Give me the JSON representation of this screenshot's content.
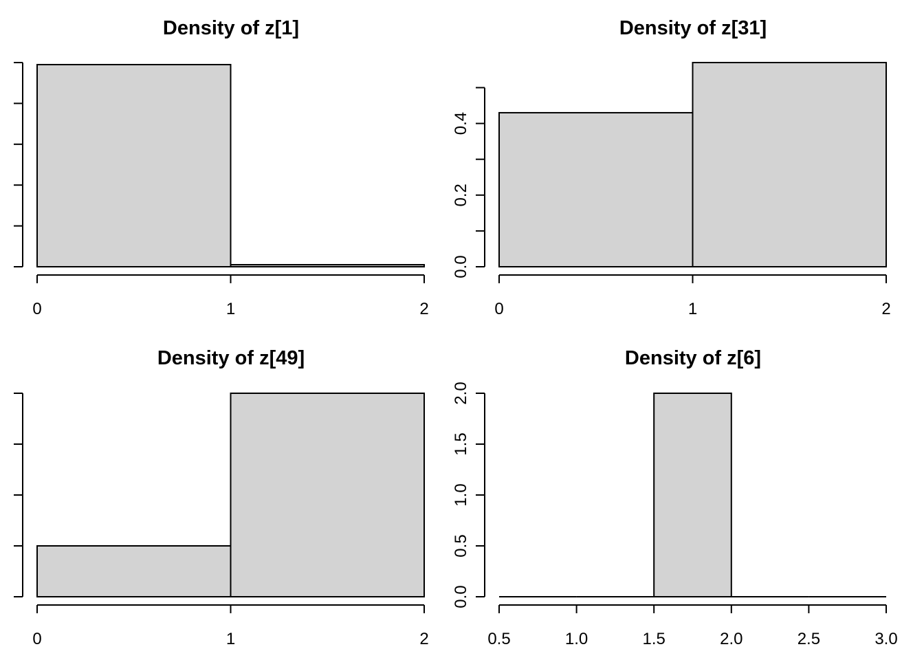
{
  "chart_data": [
    {
      "type": "bar",
      "title": "Density of z[1]",
      "xlabel": "",
      "ylabel": "",
      "bins": [
        [
          0,
          1
        ],
        [
          1,
          2
        ]
      ],
      "values": [
        0.99,
        0.01
      ],
      "x_ticks": [
        0,
        1,
        2
      ],
      "x_tick_labels": [
        "0",
        "1",
        "2"
      ],
      "y_ticks": [
        0,
        0.2,
        0.4,
        0.6,
        0.8,
        1.0
      ],
      "y_tick_labels": [],
      "xlim": [
        0,
        2
      ],
      "ylim": [
        0,
        1.0
      ]
    },
    {
      "type": "bar",
      "title": "Density of z[31]",
      "xlabel": "",
      "ylabel": "",
      "bins": [
        [
          0,
          1
        ],
        [
          1,
          2
        ]
      ],
      "values": [
        0.43,
        0.57
      ],
      "x_ticks": [
        0,
        1,
        2
      ],
      "x_tick_labels": [
        "0",
        "1",
        "2"
      ],
      "y_ticks": [
        0,
        0.1,
        0.2,
        0.3,
        0.4,
        0.5
      ],
      "y_tick_labels": [
        "0.0",
        "",
        "0.2",
        "",
        "0.4",
        ""
      ],
      "xlim": [
        0,
        2
      ],
      "ylim": [
        0,
        0.57
      ]
    },
    {
      "type": "bar",
      "title": "Density of z[49]",
      "xlabel": "",
      "ylabel": "",
      "bins": [
        [
          0,
          1
        ],
        [
          1,
          2
        ]
      ],
      "values": [
        0.5,
        2.0
      ],
      "x_ticks": [
        0,
        1,
        2
      ],
      "x_tick_labels": [
        "0",
        "1",
        "2"
      ],
      "y_ticks": [
        0,
        0.5,
        1.0,
        1.5,
        2.0
      ],
      "y_tick_labels": [],
      "xlim": [
        0,
        2
      ],
      "ylim": [
        0,
        2.0
      ]
    },
    {
      "type": "bar",
      "title": "Density of z[6]",
      "xlabel": "",
      "ylabel": "",
      "bins": [
        [
          0.5,
          1.0
        ],
        [
          1.0,
          1.5
        ],
        [
          1.5,
          2.0
        ],
        [
          2.0,
          2.5
        ],
        [
          2.5,
          3.0
        ]
      ],
      "values": [
        0,
        0,
        2.0,
        0,
        0
      ],
      "x_ticks": [
        0.5,
        1.0,
        1.5,
        2.0,
        2.5,
        3.0
      ],
      "x_tick_labels": [
        "0.5",
        "1.0",
        "1.5",
        "2.0",
        "2.5",
        "3.0"
      ],
      "y_ticks": [
        0,
        0.5,
        1.0,
        1.5,
        2.0
      ],
      "y_tick_labels": [
        "0.0",
        "0.5",
        "1.0",
        "1.5",
        "2.0"
      ],
      "xlim": [
        0.5,
        3.0
      ],
      "ylim": [
        0,
        2.0
      ]
    }
  ],
  "colors": {
    "bar_fill": "#d3d3d3",
    "bar_stroke": "#000000",
    "background": "#ffffff"
  }
}
